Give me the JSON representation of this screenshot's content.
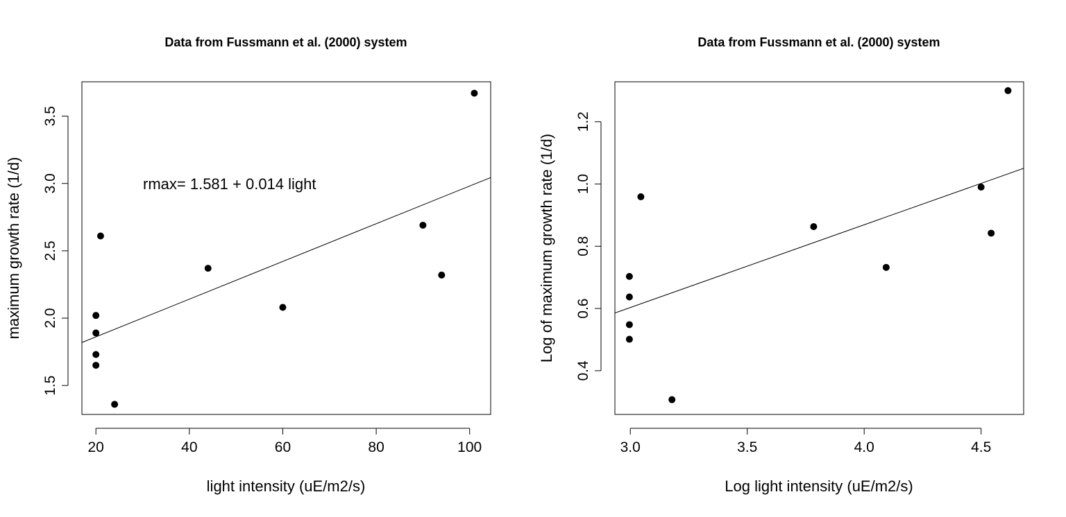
{
  "chart_data": [
    {
      "type": "scatter",
      "title": "Data from Fussmann et al. (2000) system",
      "xlabel": "light intensity (uE/m2/s)",
      "ylabel": "maximum growth rate (1/d)",
      "xlim": [
        17,
        104.5
      ],
      "ylim": [
        1.285,
        3.755
      ],
      "xticks": [
        20,
        40,
        60,
        80,
        100
      ],
      "xtick_labels": [
        "20",
        "40",
        "60",
        "80",
        "100"
      ],
      "yticks": [
        1.5,
        2.0,
        2.5,
        3.0,
        3.5
      ],
      "ytick_labels": [
        "1.5",
        "2.0",
        "2.5",
        "3.0",
        "3.5"
      ],
      "x": [
        20,
        20,
        20,
        20,
        21,
        24,
        44,
        60,
        90,
        94,
        101
      ],
      "y": [
        1.65,
        1.73,
        1.89,
        2.02,
        2.61,
        1.36,
        2.37,
        2.08,
        2.69,
        2.32,
        3.67
      ],
      "fit_line": {
        "intercept": 1.581,
        "slope": 0.014
      },
      "annotation": {
        "text": "rmax= 1.581 + 0.014 light",
        "x": 30,
        "y": 3.0
      },
      "grid": false,
      "legend": "none"
    },
    {
      "type": "scatter",
      "title": "Data from Fussmann et al. (2000) system",
      "xlabel": "Log light intensity (uE/m2/s)",
      "ylabel": "Log of maximum growth rate (1/d)",
      "xlim": [
        2.934,
        4.682
      ],
      "ylim": [
        0.2595,
        1.3285
      ],
      "xticks": [
        3.0,
        3.5,
        4.0,
        4.5
      ],
      "xtick_labels": [
        "3.0",
        "3.5",
        "4.0",
        "4.5"
      ],
      "yticks": [
        0.4,
        0.6,
        0.8,
        1.0,
        1.2
      ],
      "ytick_labels": [
        "0.4",
        "0.6",
        "0.8",
        "1.0",
        "1.2"
      ],
      "x": [
        2.996,
        2.996,
        2.996,
        2.996,
        3.045,
        3.178,
        3.784,
        4.094,
        4.5,
        4.543,
        4.615
      ],
      "y": [
        0.501,
        0.548,
        0.637,
        0.703,
        0.959,
        0.307,
        0.863,
        0.732,
        0.99,
        0.842,
        1.3
      ],
      "fit_line": {
        "intercept": -0.195,
        "slope": 0.266
      },
      "grid": false,
      "legend": "none"
    }
  ]
}
